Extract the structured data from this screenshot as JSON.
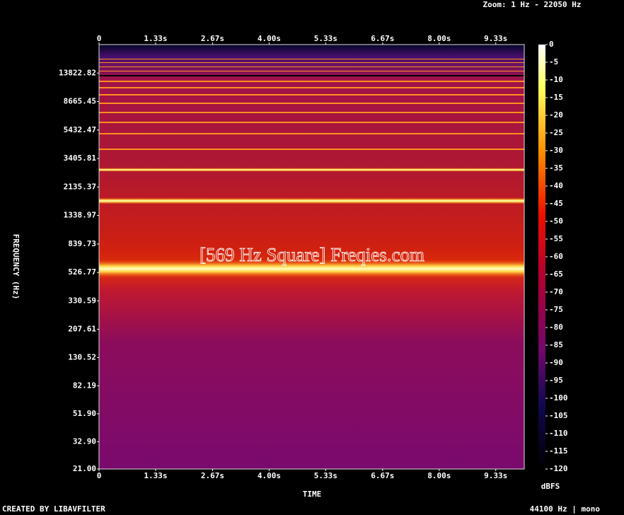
{
  "chart_data": {
    "type": "spectrogram",
    "title": "[569 Hz Square] Freqies.com",
    "zoom": "Zoom: 1 Hz - 22050 Hz",
    "xlabel": "TIME",
    "ylabel": "FREQUENCY (Hz)",
    "colorbar_label": "dBFS",
    "footer_left": "CREATED BY LIBAVFILTER",
    "footer_right": "44100 Hz | mono",
    "xlim": [
      0,
      10
    ],
    "xticks": [
      0,
      {
        "value": 1.33,
        "label": "1.33s"
      },
      {
        "value": 2.67,
        "label": "2.67s"
      },
      {
        "value": 4,
        "label": "4.00s"
      },
      {
        "value": 5.33,
        "label": "5.33s"
      },
      {
        "value": 6.67,
        "label": "6.67s"
      },
      {
        "value": 8,
        "label": "8.00s"
      },
      {
        "value": 9.33,
        "label": "9.33s"
      }
    ],
    "ylim": [
      21,
      22050
    ],
    "yscale": "log",
    "yticks": [
      {
        "value": 21,
        "label": "21.00"
      },
      {
        "value": 32.9,
        "label": "32.90"
      },
      {
        "value": 51.9,
        "label": "51.90"
      },
      82.19,
      130.52,
      207.61,
      330.59,
      526.77,
      839.73,
      1338.97,
      2135.37,
      3405.81,
      5432.47,
      8665.45,
      13822.82
    ],
    "zlim": [
      -120,
      0
    ],
    "zticks": [
      0,
      -5,
      -10,
      -15,
      -20,
      -25,
      -30,
      -35,
      -40,
      -45,
      -50,
      -55,
      -60,
      -65,
      -70,
      -75,
      -80,
      -85,
      -90,
      -95,
      -100,
      -105,
      -110,
      -115,
      -120
    ]
  }
}
